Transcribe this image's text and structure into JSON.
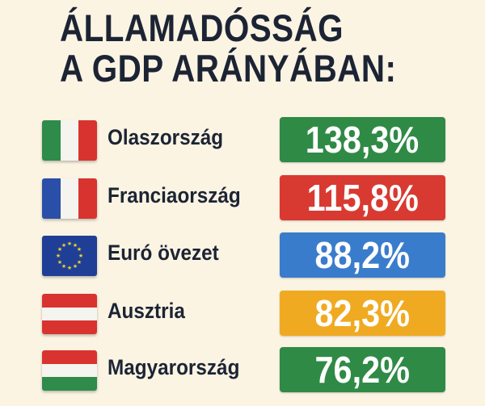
{
  "title": {
    "line1": "ÁLLAMADÓSSÁG",
    "line2": "A GDP ARÁNYÁBAN:"
  },
  "chart_data": {
    "type": "table",
    "title": "ÁLLAMADÓSSÁG A GDP ARÁNYÁBAN:",
    "categories": [
      "Olaszország",
      "Franciaország",
      "Euró övezet",
      "Ausztria",
      "Magyarország"
    ],
    "values": [
      138.3,
      115.8,
      88.2,
      82.3,
      76.2
    ],
    "labels": [
      "138,3%",
      "115,8%",
      "88,2%",
      "82,3%",
      "76,2%"
    ],
    "colors": [
      "#2f8a46",
      "#d83a32",
      "#3a7ccc",
      "#f0aa22",
      "#2f8a46"
    ],
    "flags": [
      "italy-flag",
      "france-flag",
      "eu-flag",
      "austria-flag",
      "hungary-flag"
    ]
  }
}
